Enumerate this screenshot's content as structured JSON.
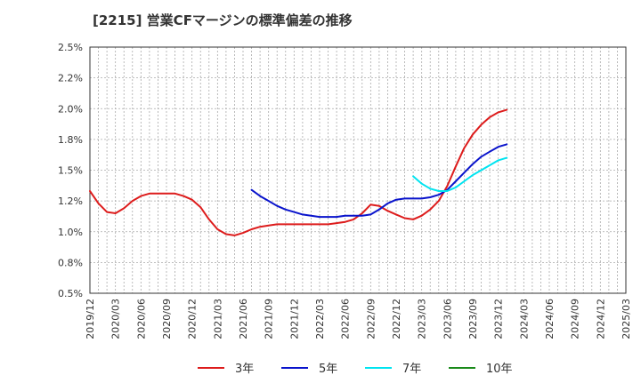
{
  "chart_data": {
    "type": "line",
    "title": "[2215]  営業CFマージンの標準偏差の推移",
    "y_ticks": [
      "0.5%",
      "0.8%",
      "1.0%",
      "1.2%",
      "1.5%",
      "1.8%",
      "2.0%",
      "2.2%",
      "2.5%"
    ],
    "ylim": [
      0.5,
      2.5
    ],
    "x_ticks": [
      "2019/12",
      "2020/03",
      "2020/06",
      "2020/09",
      "2020/12",
      "2021/03",
      "2021/06",
      "2021/09",
      "2021/12",
      "2022/03",
      "2022/06",
      "2022/09",
      "2022/12",
      "2023/03",
      "2023/06",
      "2023/09",
      "2023/12",
      "2024/03",
      "2024/06",
      "2024/09",
      "2024/12",
      "2025/03"
    ],
    "grid": true,
    "legend_position": "bottom",
    "series": [
      {
        "name": "3年",
        "color": "#dd1c1c",
        "start_index": 0,
        "values": [
          1.33,
          1.23,
          1.16,
          1.15,
          1.19,
          1.25,
          1.29,
          1.31,
          1.31,
          1.31,
          1.31,
          1.29,
          1.26,
          1.2,
          1.1,
          1.02,
          0.98,
          0.97,
          0.99,
          1.02,
          1.04,
          1.05,
          1.06,
          1.06,
          1.06,
          1.06,
          1.06,
          1.06,
          1.06,
          1.07,
          1.08,
          1.1,
          1.15,
          1.22,
          1.21,
          1.17,
          1.14,
          1.11,
          1.1,
          1.13,
          1.18,
          1.25,
          1.37,
          1.53,
          1.68,
          1.79,
          1.87,
          1.93,
          1.97,
          1.99
        ]
      },
      {
        "name": "5年",
        "color": "#0a14cc",
        "start_index": 19,
        "values": [
          1.34,
          1.29,
          1.25,
          1.21,
          1.18,
          1.16,
          1.14,
          1.13,
          1.12,
          1.12,
          1.12,
          1.13,
          1.13,
          1.13,
          1.14,
          1.18,
          1.23,
          1.26,
          1.27,
          1.27,
          1.27,
          1.28,
          1.3,
          1.34,
          1.41,
          1.48,
          1.55,
          1.61,
          1.65,
          1.69,
          1.71
        ]
      },
      {
        "name": "7年",
        "color": "#00e4f0",
        "start_index": 38,
        "values": [
          1.45,
          1.39,
          1.35,
          1.33,
          1.33,
          1.36,
          1.41,
          1.46,
          1.5,
          1.54,
          1.58,
          1.6
        ]
      },
      {
        "name": "10年",
        "color": "#1a8a1a",
        "start_index": 0,
        "values": []
      }
    ]
  }
}
